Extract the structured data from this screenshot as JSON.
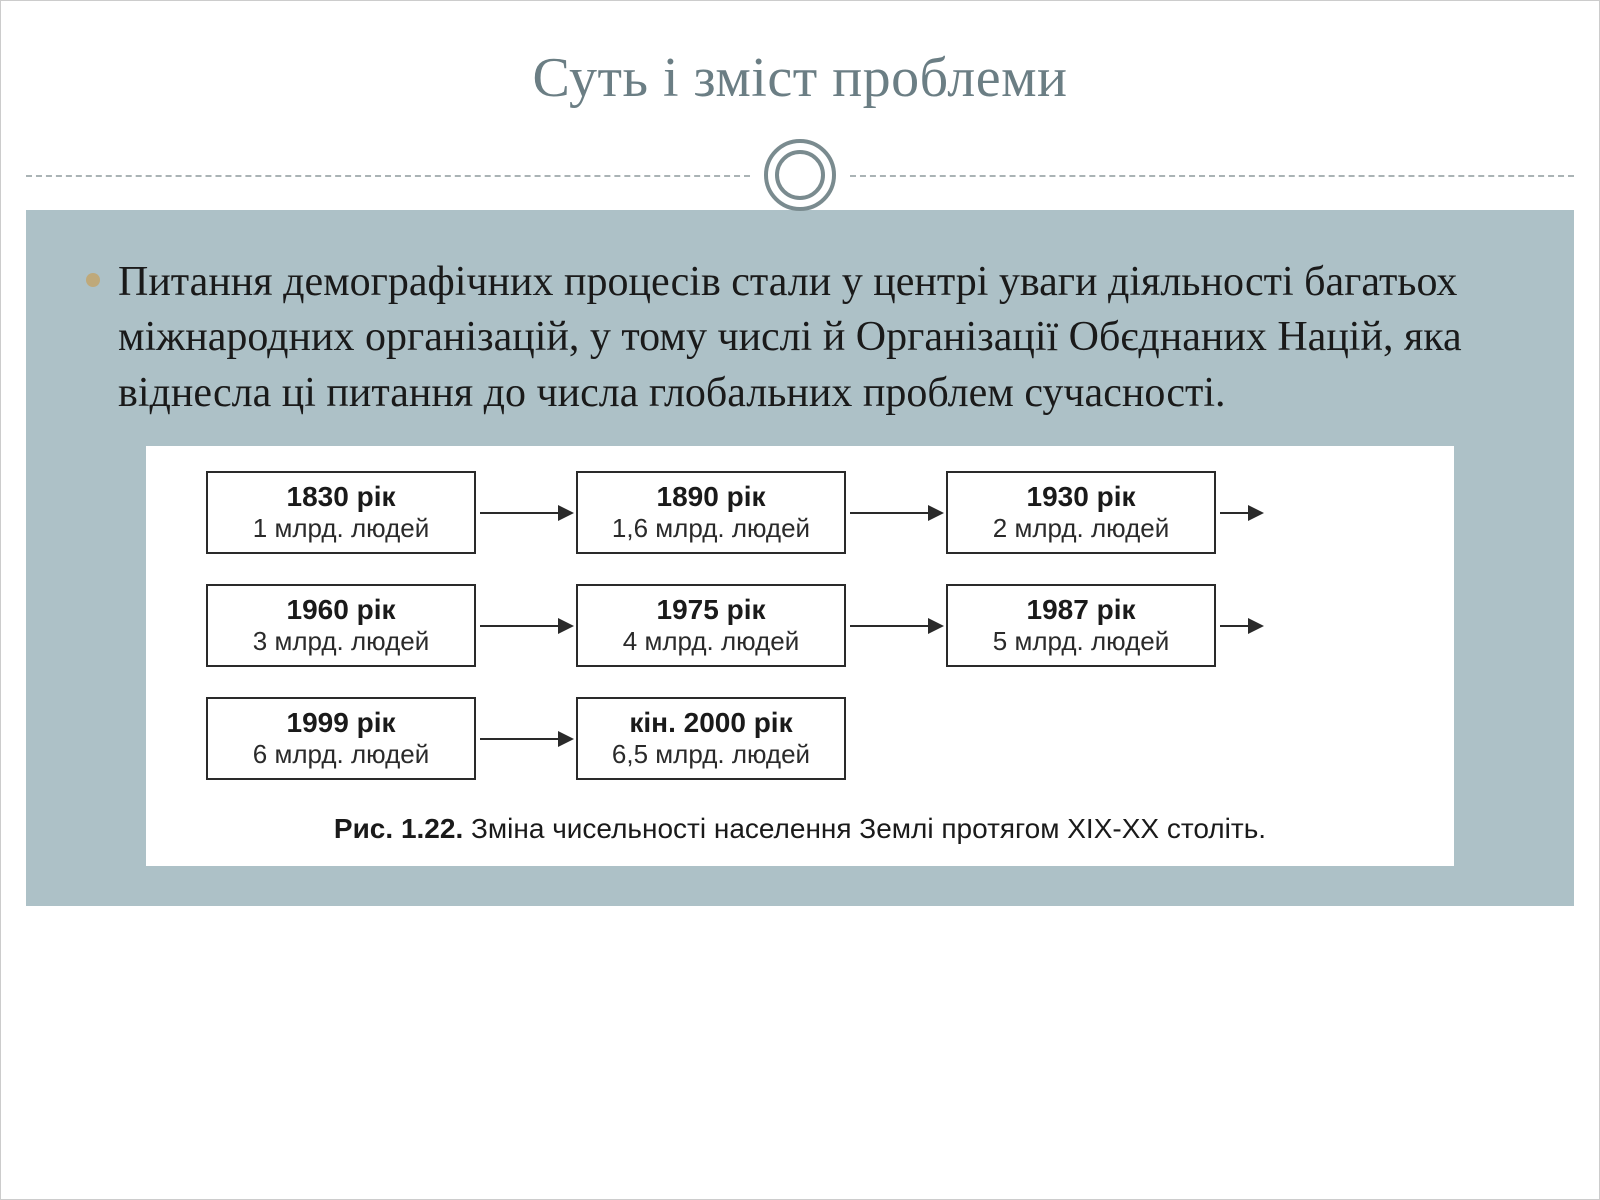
{
  "slide": {
    "title": "Суть і зміст проблеми",
    "title_color": "#6b7e84",
    "title_fontsize": 56,
    "background_color": "#adc1c7",
    "bullet_color": "#bfa97a",
    "divider_color": "#aab3b5",
    "circle_border_color": "#7a8b8f",
    "body_text": "Питання демографічних процесів стали у центрі уваги діяльності багатьох міжнародних організацій, у тому числі й Організації Обєднаних Націй, яка віднесла ці питання до числа глобальних проблем сучасності.",
    "body_fontsize": 42
  },
  "diagram": {
    "type": "flowchart",
    "background_color": "#ffffff",
    "node_border_color": "#2a2a2a",
    "node_border_width": 2,
    "arrow_color": "#2a2a2a",
    "year_fontsize": 28,
    "value_fontsize": 26,
    "caption_fontsize": 28,
    "rows": [
      {
        "nodes": [
          {
            "year": "1830 рік",
            "value": "1 млрд. людей"
          },
          {
            "year": "1890 рік",
            "value": "1,6 млрд. людей"
          },
          {
            "year": "1930 рік",
            "value": "2 млрд. людей"
          }
        ],
        "trailing_arrow": true
      },
      {
        "nodes": [
          {
            "year": "1960 рік",
            "value": "3 млрд. людей"
          },
          {
            "year": "1975 рік",
            "value": "4 млрд. людей"
          },
          {
            "year": "1987 рік",
            "value": "5 млрд. людей"
          }
        ],
        "trailing_arrow": true
      },
      {
        "nodes": [
          {
            "year": "1999 рік",
            "value": "6 млрд. людей"
          },
          {
            "year": "кін. 2000 рік",
            "value": "6,5 млрд. людей"
          }
        ],
        "trailing_arrow": false
      }
    ],
    "caption_label": "Рис. 1.22.",
    "caption_text": " Зміна чисельності населення Землі протягом XIX-XX століть."
  }
}
